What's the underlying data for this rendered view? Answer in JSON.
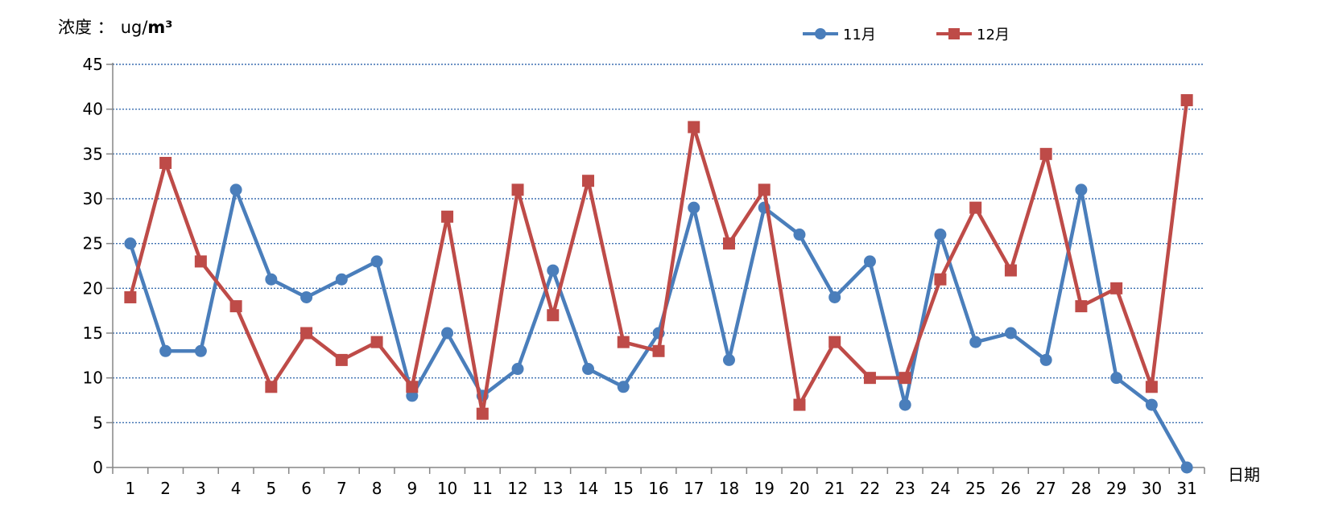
{
  "chart_data": {
    "type": "line",
    "ylabel_prefix": "浓度 ：",
    "ylabel_unit_plain": "ug/",
    "ylabel_unit_bold": "m³",
    "xlabel": "日期",
    "categories": [
      "1",
      "2",
      "3",
      "4",
      "5",
      "6",
      "7",
      "8",
      "9",
      "10",
      "11",
      "12",
      "13",
      "14",
      "15",
      "16",
      "17",
      "18",
      "19",
      "20",
      "21",
      "22",
      "23",
      "24",
      "25",
      "26",
      "27",
      "28",
      "29",
      "30",
      "31"
    ],
    "ylim": [
      0,
      45
    ],
    "yticks": [
      0,
      5,
      10,
      15,
      20,
      25,
      30,
      35,
      40,
      45
    ],
    "grid": true,
    "legend_position": "top-center",
    "series": [
      {
        "name": "11月",
        "color": "#4a7ebb",
        "marker": "circle",
        "values": [
          25,
          13,
          13,
          31,
          21,
          19,
          21,
          23,
          8,
          15,
          8,
          11,
          22,
          11,
          9,
          15,
          29,
          12,
          29,
          26,
          19,
          23,
          7,
          26,
          14,
          15,
          12,
          31,
          10,
          7,
          0
        ]
      },
      {
        "name": "12月",
        "color": "#be4b48",
        "marker": "square",
        "values": [
          19,
          34,
          23,
          18,
          9,
          15,
          12,
          14,
          9,
          28,
          6,
          31,
          17,
          32,
          14,
          13,
          38,
          25,
          31,
          7,
          14,
          10,
          10,
          21,
          29,
          22,
          35,
          18,
          20,
          9,
          41
        ]
      }
    ]
  }
}
